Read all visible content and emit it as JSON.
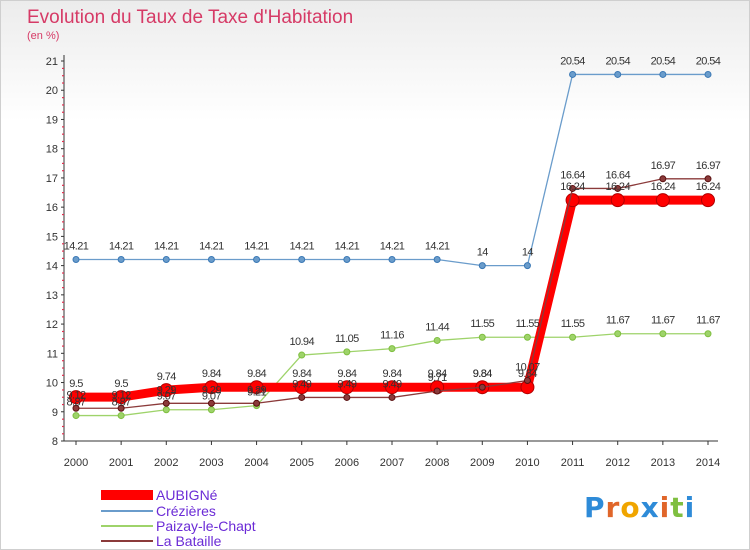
{
  "header": {
    "title": "Evolution du Taux de Taxe d'Habitation",
    "subtitle": "(en %)"
  },
  "logo": {
    "text": "Proxiti"
  },
  "chart_data": {
    "type": "line",
    "title": "Evolution du Taux de Taxe d'Habitation",
    "ylabel": "(en %)",
    "xlabel": "",
    "ylim": [
      8,
      21
    ],
    "grid": false,
    "legend_position": "bottom-left",
    "x": [
      "2000",
      "2001",
      "2002",
      "2003",
      "2004",
      "2005",
      "2006",
      "2007",
      "2008",
      "2009",
      "2010",
      "2011",
      "2012",
      "2013",
      "2014"
    ],
    "yticks": [
      "8",
      "9",
      "10",
      "11",
      "12",
      "13",
      "14",
      "15",
      "16",
      "17",
      "18",
      "19",
      "20",
      "21"
    ],
    "series": [
      {
        "name": "AUBIGNé",
        "color": "#ff0000",
        "values": [
          9.5,
          9.5,
          9.74,
          9.84,
          9.84,
          9.84,
          9.84,
          9.84,
          9.84,
          9.84,
          9.84,
          16.24,
          16.24,
          16.24,
          16.24
        ],
        "labels": [
          "9.5",
          "9.5",
          "9.74",
          "9.84",
          "9.84",
          "9.84",
          "9.84",
          "9.84",
          "9.84",
          "9.84",
          "9.84",
          "16.24",
          "16.24",
          "16.24",
          "16.24"
        ]
      },
      {
        "name": "Crézières",
        "color": "#6a9ccb",
        "values": [
          14.21,
          14.21,
          14.21,
          14.21,
          14.21,
          14.21,
          14.21,
          14.21,
          14.21,
          14,
          14,
          20.54,
          20.54,
          20.54,
          20.54
        ],
        "labels": [
          "14.21",
          "14.21",
          "14.21",
          "14.21",
          "14.21",
          "14.21",
          "14.21",
          "14.21",
          "14.21",
          "14",
          "14",
          "20.54",
          "20.54",
          "20.54",
          "20.54"
        ]
      },
      {
        "name": "Paizay-le-Chapt",
        "color": "#9ed36a",
        "values": [
          8.87,
          8.87,
          9.07,
          9.07,
          9.21,
          10.94,
          11.05,
          11.16,
          11.44,
          11.55,
          11.55,
          11.55,
          11.67,
          11.67,
          11.67
        ],
        "labels": [
          "8.87",
          "8.87",
          "9.07",
          "9.07",
          "9.21",
          "10.94",
          "11.05",
          "11.16",
          "11.44",
          "11.55",
          "11.55",
          "11.55",
          "11.67",
          "11.67",
          "11.67"
        ]
      },
      {
        "name": "La Bataille",
        "color": "#8b3a3a",
        "values": [
          9.12,
          9.12,
          9.29,
          9.29,
          9.29,
          9.49,
          9.49,
          9.49,
          9.71,
          9.84,
          10.07,
          16.64,
          16.64,
          16.97,
          16.97
        ],
        "labels": [
          "9.12",
          "9.12",
          "9.29",
          "9.29",
          "9.29",
          "9.49",
          "9.49",
          "9.49",
          "9.71",
          "9.84",
          "10.07",
          "16.64",
          "16.64",
          "16.97",
          "16.97"
        ]
      }
    ]
  }
}
